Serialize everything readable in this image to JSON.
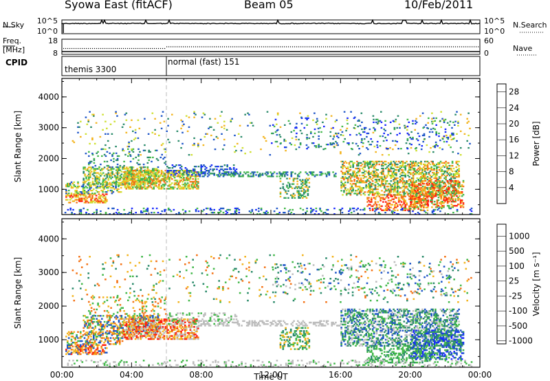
{
  "header": {
    "station": "Syowa East (fitACF)",
    "beam": "Beam 05",
    "date": "10/Feb/2011"
  },
  "nsky_panel": {
    "left_label": "N.Sky",
    "right_label": "N.Search",
    "ticks_left": [
      "10^5",
      "10^0"
    ],
    "ticks_right": [
      "10^5",
      "10^0"
    ],
    "scale": "log"
  },
  "freq_panel": {
    "left_label_1": "Freq.",
    "left_label_2": "[MHz]",
    "right_label": "Nave",
    "ticks_left": [
      "18",
      "8"
    ],
    "ticks_right": [
      "60",
      "0"
    ]
  },
  "cpid_panel": {
    "label": "CPID",
    "segments": [
      {
        "name": "themis 3300",
        "start_hour": 0,
        "end_hour": 6
      },
      {
        "name": "normal (fast) 151",
        "start_hour": 6,
        "end_hour": 24
      }
    ]
  },
  "chart_data": [
    {
      "type": "heatmap",
      "name": "power",
      "ylabel": "Slant Range [km]",
      "yticks": [
        "1000",
        "2000",
        "3000",
        "4000"
      ],
      "ylim": [
        180,
        4600
      ],
      "xlim": [
        0,
        24
      ],
      "colorbar": {
        "label": "Power [dB]",
        "ticks": [
          "4",
          "8",
          "12",
          "16",
          "20",
          "24",
          "28"
        ],
        "range": [
          0,
          30
        ],
        "colors": [
          "#1a2bff",
          "#1f56c8",
          "#2a8a6a",
          "#42b84a",
          "#cfe032",
          "#f3b41e",
          "#f47316",
          "#ff1e10"
        ]
      }
    },
    {
      "type": "heatmap",
      "name": "velocity",
      "ylabel": "Slant Range [km]",
      "yticks": [
        "1000",
        "2000",
        "3000",
        "4000"
      ],
      "ylim": [
        180,
        4600
      ],
      "xlim": [
        0,
        24
      ],
      "colorbar": {
        "label": "Velocity [m s⁻¹]",
        "ticks": [
          "1000",
          "500",
          "100",
          "25",
          "-25",
          "-100",
          "-500",
          "-1000"
        ],
        "colors": [
          "#1a2bff",
          "#1f56c8",
          "#2a8a6a",
          "#42b84a",
          "#bdbdbd",
          "#f3b41e",
          "#f47316",
          "#ff1e10"
        ]
      }
    }
  ],
  "xaxis": {
    "label": "Time UT",
    "ticks": [
      "00:00",
      "04:00",
      "08:00",
      "12:00",
      "16:00",
      "20:00",
      "00:00"
    ]
  }
}
